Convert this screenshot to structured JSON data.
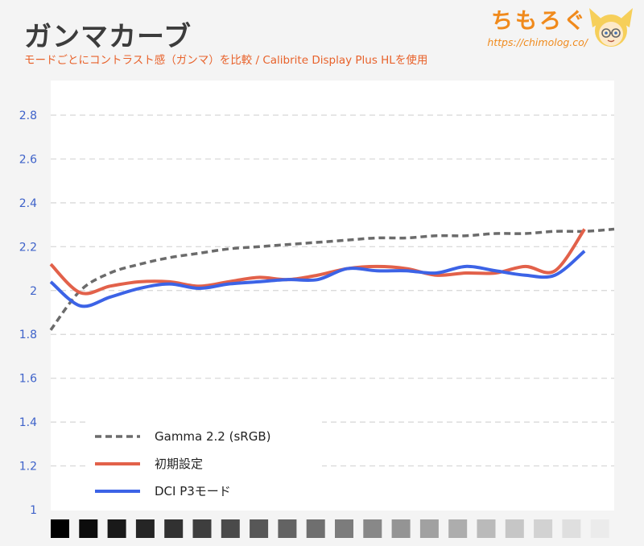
{
  "header": {
    "title": "ガンマカーブ",
    "subtitle": "モードごとにコントラスト感（ガンマ）を比較 / Calibrite Display Plus HLを使用"
  },
  "brand": {
    "name": "ちもろぐ",
    "url": "https://chimolog.co/"
  },
  "colors": {
    "title": "#3c3c3c",
    "subtitle": "#e8622b",
    "brand": "#f08a1c",
    "tick": "#3e62c9"
  },
  "chart_data": {
    "type": "line",
    "title": "ガンマカーブ",
    "xlabel": "",
    "ylabel": "",
    "ylim": [
      1,
      2.9
    ],
    "y_ticks": [
      "1",
      "1.2",
      "1.4",
      "1.6",
      "1.8",
      "2",
      "2.2",
      "2.4",
      "2.6",
      "2.8"
    ],
    "grid": true,
    "legend_position": "bottom-left",
    "x_axis_note": "grayscale swatches from black to white",
    "grayscale_steps": 20,
    "x": [
      1,
      2,
      3,
      4,
      5,
      6,
      7,
      8,
      9,
      10,
      11,
      12,
      13,
      14,
      15,
      16,
      17,
      18,
      19,
      20
    ],
    "series": [
      {
        "name": "Gamma 2.2 (sRGB)",
        "color": "#6b6b6b",
        "style": "dashed",
        "values": [
          1.82,
          2.0,
          2.08,
          2.12,
          2.15,
          2.17,
          2.19,
          2.2,
          2.21,
          2.22,
          2.23,
          2.24,
          2.24,
          2.25,
          2.25,
          2.26,
          2.26,
          2.27,
          2.27,
          2.28
        ]
      },
      {
        "name": "初期設定",
        "color": "#e2614a",
        "style": "solid",
        "values": [
          2.12,
          1.99,
          2.02,
          2.04,
          2.04,
          2.02,
          2.04,
          2.06,
          2.05,
          2.07,
          2.1,
          2.11,
          2.1,
          2.07,
          2.08,
          2.08,
          2.11,
          2.09,
          2.28,
          null
        ]
      },
      {
        "name": "DCI P3モード",
        "color": "#3c63e6",
        "style": "solid",
        "values": [
          2.04,
          1.93,
          1.97,
          2.01,
          2.03,
          2.01,
          2.03,
          2.04,
          2.05,
          2.05,
          2.1,
          2.09,
          2.09,
          2.08,
          2.11,
          2.09,
          2.07,
          2.07,
          2.18,
          null
        ]
      }
    ]
  }
}
